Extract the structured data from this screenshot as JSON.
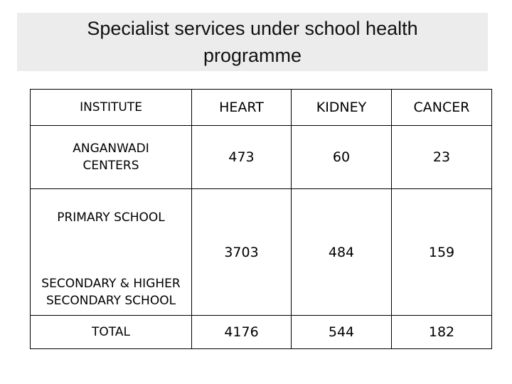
{
  "title": "Specialist services under school health programme",
  "table": {
    "headers": [
      "INSTITUTE",
      "HEART",
      "KIDNEY",
      "CANCER"
    ],
    "rows": {
      "anganwadi": {
        "institute": "ANGANWADI CENTERS",
        "heart": "473",
        "kidney": "60",
        "cancer": "23"
      },
      "schools": {
        "primary_label": "PRIMARY SCHOOL",
        "secondary_label": "SECONDARY & HIGHER SECONDARY SCHOOL",
        "heart": "3703",
        "kidney": "484",
        "cancer": "159"
      },
      "total": {
        "institute": "TOTAL",
        "heart": "4176",
        "kidney": "544",
        "cancer": "182"
      }
    }
  }
}
